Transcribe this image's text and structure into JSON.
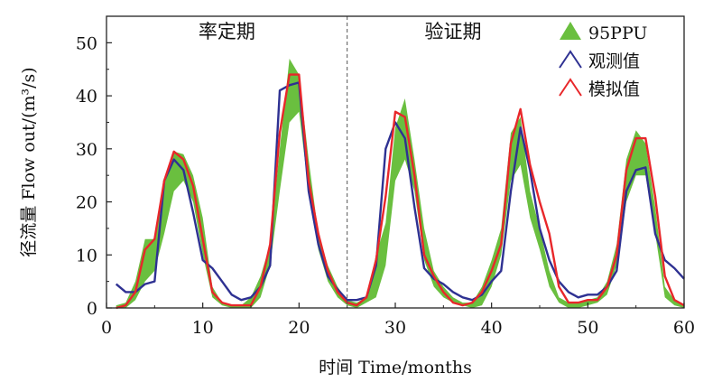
{
  "chart_data": {
    "type": "line",
    "xlabel": "时间 Time/months",
    "ylabel": "径流量 Flow out/(m³/s)",
    "xlim": [
      0,
      60
    ],
    "ylim": [
      0,
      55
    ],
    "xticks": [
      0,
      10,
      20,
      30,
      40,
      50,
      60
    ],
    "yticks": [
      0,
      10,
      20,
      30,
      40,
      50
    ],
    "grid": false,
    "legend_position": "top-right",
    "period_labels": [
      {
        "text": "率定期",
        "x": 12.5
      },
      {
        "text": "验证期",
        "x": 36
      }
    ],
    "divider_x": 25,
    "legend": [
      {
        "label": "95PPU",
        "kind": "band",
        "color": "#6abf3f"
      },
      {
        "label": "观测值",
        "kind": "line",
        "color": "#2e3192"
      },
      {
        "label": "模拟值",
        "kind": "line",
        "color": "#e8272a"
      }
    ],
    "x": [
      1,
      2,
      3,
      4,
      5,
      6,
      7,
      8,
      9,
      10,
      11,
      12,
      13,
      14,
      15,
      16,
      17,
      18,
      19,
      20,
      21,
      22,
      23,
      24,
      25,
      26,
      27,
      28,
      29,
      30,
      31,
      32,
      33,
      34,
      35,
      36,
      37,
      38,
      39,
      40,
      41,
      42,
      43,
      44,
      45,
      46,
      47,
      48,
      49,
      50,
      51,
      52,
      53,
      54,
      55,
      56,
      57,
      58,
      59,
      60
    ],
    "series": [
      {
        "name": "95PPU",
        "kind": "band",
        "color": "#6abf3f",
        "lower": [
          0,
          0,
          1.5,
          5,
          7,
          14,
          22,
          24,
          20,
          10,
          2,
          0.5,
          0,
          0,
          0,
          2,
          8,
          22,
          35,
          37,
          22,
          11,
          5,
          2,
          0.5,
          0,
          1,
          2,
          8,
          24,
          28,
          22,
          9,
          4,
          2,
          1,
          0.5,
          0,
          0.5,
          4,
          10,
          24,
          27,
          17,
          11,
          4,
          1,
          0,
          0,
          0.5,
          1,
          2.5,
          8,
          20,
          25,
          25,
          14,
          2,
          0.5,
          0
        ],
        "upper": [
          0.5,
          1,
          5,
          13,
          13,
          24,
          29.5,
          29,
          25,
          17,
          4,
          1,
          0.5,
          0.5,
          2,
          6,
          12,
          30,
          47,
          44,
          28,
          14,
          8,
          4,
          1.5,
          1,
          2,
          10,
          16,
          34,
          39.5,
          28,
          15,
          7,
          4,
          2,
          1,
          1,
          4,
          9,
          15,
          33,
          36,
          22,
          15,
          7,
          2,
          1,
          1,
          1.5,
          2,
          5,
          12,
          28,
          33.5,
          31,
          19,
          4,
          1.5,
          0.5
        ]
      },
      {
        "name": "观测值",
        "kind": "line",
        "color": "#2e3192",
        "values": [
          4.5,
          3,
          3,
          4.5,
          5,
          24,
          28,
          26,
          18,
          9,
          7.5,
          5,
          2.5,
          1.5,
          2,
          4,
          8,
          41,
          42,
          42.5,
          22,
          12,
          6,
          3.5,
          1.5,
          1.5,
          2,
          8,
          30,
          35,
          32,
          19,
          7.5,
          5.5,
          4.5,
          3,
          2,
          1.5,
          2.5,
          5,
          7,
          22,
          34,
          26,
          15,
          9,
          5,
          3,
          2,
          2.5,
          2.5,
          4,
          7,
          22,
          26,
          26.5,
          14,
          9,
          7.5,
          5.5
        ]
      },
      {
        "name": "模拟值",
        "kind": "line",
        "color": "#e8272a",
        "values": [
          0,
          0.5,
          3,
          11,
          13,
          24,
          29.5,
          28,
          23,
          13,
          3,
          1,
          0.5,
          0.5,
          0.5,
          4,
          12,
          33,
          44,
          44,
          24,
          14,
          7,
          3,
          1,
          0.5,
          2,
          9,
          21,
          37,
          36,
          25,
          10,
          6,
          3,
          1,
          0.5,
          1,
          3,
          7,
          12,
          31,
          37.5,
          27,
          20,
          14,
          4,
          1,
          1,
          1.5,
          1.5,
          4,
          10,
          26,
          32,
          32,
          21,
          6,
          1.5,
          0.5
        ]
      }
    ]
  }
}
